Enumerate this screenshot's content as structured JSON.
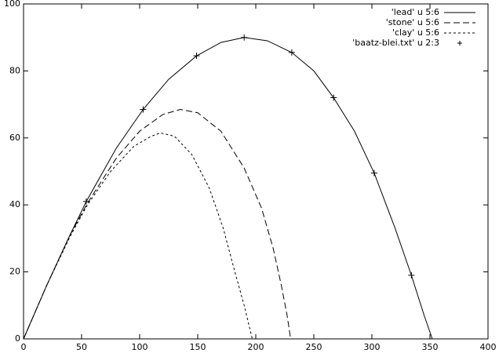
{
  "chart_data": {
    "type": "line",
    "xlim": [
      0,
      400
    ],
    "ylim": [
      0,
      100
    ],
    "xticks": [
      0,
      50,
      100,
      150,
      200,
      250,
      300,
      350,
      400
    ],
    "yticks": [
      0,
      20,
      40,
      60,
      80,
      100
    ],
    "legend": "top right",
    "series": [
      {
        "name": "'lead' u 5:6",
        "color": "#000000",
        "dash": "solid",
        "mode": "lines",
        "x": [
          0,
          20,
          40,
          54,
          80,
          103,
          125,
          149,
          170,
          190,
          210,
          231,
          250,
          267,
          285,
          302,
          320,
          334,
          345,
          352
        ],
        "values": [
          0,
          16,
          31,
          41,
          57,
          68.5,
          77.5,
          84.5,
          88.5,
          90,
          89,
          85.5,
          80,
          72,
          62,
          49.5,
          33,
          19,
          7,
          0
        ]
      },
      {
        "name": "'stone' u 5:6",
        "color": "#000000",
        "dash": "long",
        "mode": "lines",
        "x": [
          0,
          20,
          40,
          55,
          80,
          100,
          120,
          135,
          150,
          170,
          190,
          205,
          215,
          222,
          227,
          230
        ],
        "values": [
          0,
          16,
          31,
          40.5,
          54,
          62,
          67,
          68.5,
          67.5,
          62,
          51,
          39,
          27,
          16,
          7,
          0
        ]
      },
      {
        "name": "'clay' u 5:6",
        "color": "#000000",
        "dash": "short",
        "mode": "lines",
        "x": [
          0,
          20,
          40,
          55,
          75,
          95,
          110,
          118,
          130,
          145,
          160,
          172,
          182,
          190,
          197
        ],
        "values": [
          0,
          16,
          30.5,
          40,
          50,
          57.5,
          60.5,
          61.5,
          60.5,
          55,
          45,
          33,
          20,
          10,
          0
        ]
      },
      {
        "name": "'baatz-blei.txt' u 2:3",
        "color": "#000000",
        "mode": "markers",
        "marker": "+",
        "x": [
          54,
          103,
          149,
          190,
          231,
          267,
          302,
          334
        ],
        "values": [
          41,
          68.5,
          84.5,
          90,
          85.5,
          72,
          49.5,
          19
        ]
      }
    ]
  }
}
